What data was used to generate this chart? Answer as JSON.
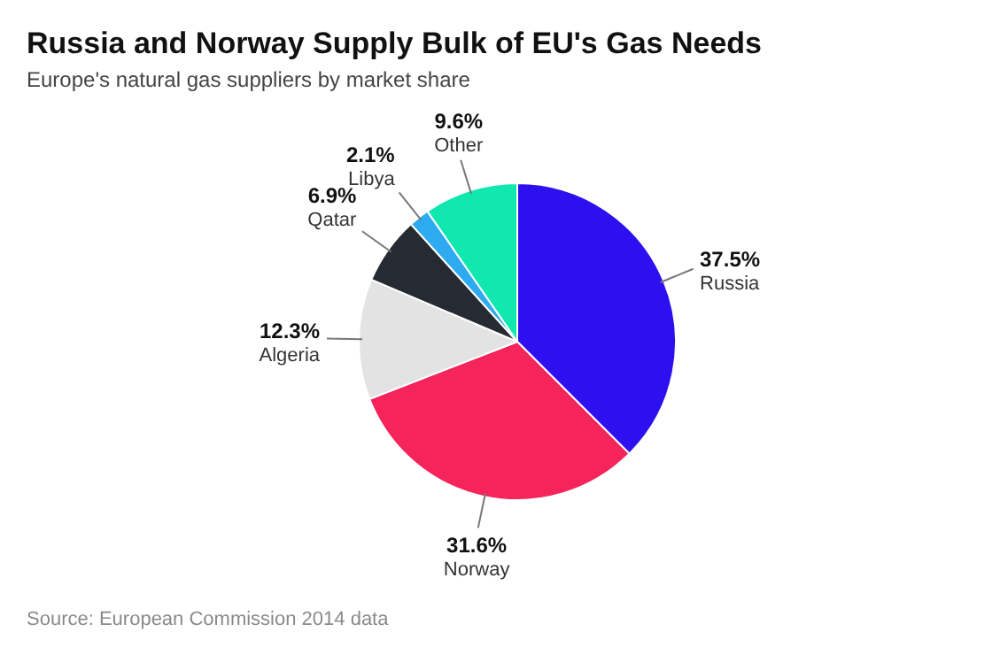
{
  "chart_data": {
    "type": "pie",
    "title": "Russia and Norway Supply Bulk of EU's Gas Needs",
    "subtitle": "Europe's natural gas suppliers by market share",
    "categories": [
      "Russia",
      "Norway",
      "Algeria",
      "Qatar",
      "Libya",
      "Other"
    ],
    "values": [
      37.5,
      31.6,
      12.3,
      6.9,
      2.1,
      9.6
    ],
    "value_labels": [
      "37.5%",
      "31.6%",
      "12.3%",
      "6.9%",
      "2.1%",
      "9.6%"
    ],
    "colors": [
      "#2d10f0",
      "#f5245a",
      "#e3e3e3",
      "#262a33",
      "#2eaaf0",
      "#10e8b0"
    ],
    "legend": false,
    "annotations": [
      "Source: European Commission 2014 data"
    ]
  }
}
